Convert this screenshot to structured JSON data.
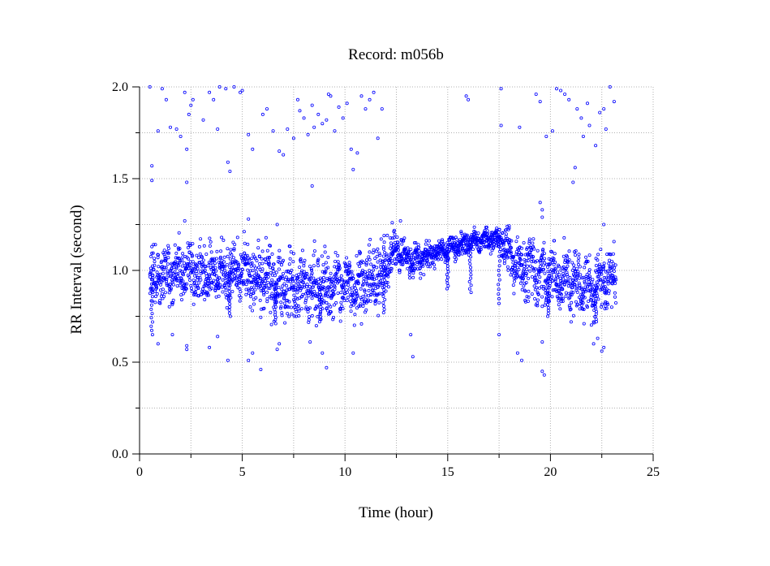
{
  "chart_data": {
    "type": "scatter",
    "title": "Record:  m056b",
    "xlabel": "Time (hour)",
    "ylabel": "RR Interval (second)",
    "xlim": [
      0,
      25
    ],
    "ylim": [
      0.0,
      2.0
    ],
    "x_ticks": [
      {
        "value": 0,
        "label": "0"
      },
      {
        "value": 5,
        "label": "5"
      },
      {
        "value": 10,
        "label": "10"
      },
      {
        "value": 15,
        "label": "15"
      },
      {
        "value": 20,
        "label": "20"
      },
      {
        "value": 25,
        "label": "25"
      }
    ],
    "y_ticks": [
      {
        "value": 0.0,
        "label": "0.0"
      },
      {
        "value": 0.5,
        "label": "0.5"
      },
      {
        "value": 1.0,
        "label": "1.0"
      },
      {
        "value": 1.5,
        "label": "1.5"
      },
      {
        "value": 2.0,
        "label": "2.0"
      }
    ],
    "grid": true,
    "grid_style": "dotted",
    "marker": "open-circle",
    "series_color": "#0000ff",
    "trend": [
      {
        "x": 0.5,
        "y": 0.97,
        "spread": 0.13
      },
      {
        "x": 1.5,
        "y": 0.99,
        "spread": 0.13
      },
      {
        "x": 3.0,
        "y": 1.0,
        "spread": 0.13
      },
      {
        "x": 5.0,
        "y": 0.98,
        "spread": 0.13
      },
      {
        "x": 6.5,
        "y": 0.93,
        "spread": 0.15
      },
      {
        "x": 8.0,
        "y": 0.9,
        "spread": 0.14
      },
      {
        "x": 10.0,
        "y": 0.92,
        "spread": 0.14
      },
      {
        "x": 11.5,
        "y": 0.95,
        "spread": 0.14
      },
      {
        "x": 12.5,
        "y": 1.12,
        "spread": 0.08
      },
      {
        "x": 13.2,
        "y": 1.05,
        "spread": 0.08
      },
      {
        "x": 14.5,
        "y": 1.1,
        "spread": 0.05
      },
      {
        "x": 16.0,
        "y": 1.15,
        "spread": 0.05
      },
      {
        "x": 17.5,
        "y": 1.18,
        "spread": 0.05
      },
      {
        "x": 18.2,
        "y": 1.05,
        "spread": 0.12
      },
      {
        "x": 19.5,
        "y": 0.98,
        "spread": 0.14
      },
      {
        "x": 21.0,
        "y": 0.94,
        "spread": 0.14
      },
      {
        "x": 22.0,
        "y": 0.9,
        "spread": 0.14
      },
      {
        "x": 23.2,
        "y": 0.99,
        "spread": 0.12
      }
    ],
    "dips": [
      {
        "x": 0.6,
        "y": 0.65
      },
      {
        "x": 4.4,
        "y": 0.75
      },
      {
        "x": 6.6,
        "y": 0.73
      },
      {
        "x": 8.8,
        "y": 0.72
      },
      {
        "x": 11.9,
        "y": 0.77
      },
      {
        "x": 15.0,
        "y": 0.9
      },
      {
        "x": 16.1,
        "y": 0.88
      },
      {
        "x": 17.5,
        "y": 0.82
      },
      {
        "x": 19.9,
        "y": 0.75
      },
      {
        "x": 22.2,
        "y": 0.72
      }
    ],
    "outliers": [
      {
        "x": 0.5,
        "y": 2.0
      },
      {
        "x": 0.6,
        "y": 1.57
      },
      {
        "x": 0.6,
        "y": 1.49
      },
      {
        "x": 0.9,
        "y": 1.76
      },
      {
        "x": 1.1,
        "y": 1.99
      },
      {
        "x": 1.3,
        "y": 1.93
      },
      {
        "x": 1.5,
        "y": 1.78
      },
      {
        "x": 1.8,
        "y": 1.77
      },
      {
        "x": 2.0,
        "y": 1.73
      },
      {
        "x": 2.2,
        "y": 1.97
      },
      {
        "x": 2.3,
        "y": 1.66
      },
      {
        "x": 2.4,
        "y": 1.85
      },
      {
        "x": 2.5,
        "y": 1.9
      },
      {
        "x": 2.6,
        "y": 1.93
      },
      {
        "x": 2.3,
        "y": 1.48
      },
      {
        "x": 3.1,
        "y": 1.82
      },
      {
        "x": 3.4,
        "y": 1.97
      },
      {
        "x": 3.6,
        "y": 1.93
      },
      {
        "x": 3.8,
        "y": 1.77
      },
      {
        "x": 3.9,
        "y": 2.0
      },
      {
        "x": 4.2,
        "y": 1.99
      },
      {
        "x": 4.3,
        "y": 1.59
      },
      {
        "x": 4.4,
        "y": 1.54
      },
      {
        "x": 4.6,
        "y": 2.0
      },
      {
        "x": 4.9,
        "y": 1.97
      },
      {
        "x": 5.0,
        "y": 1.98
      },
      {
        "x": 5.3,
        "y": 1.74
      },
      {
        "x": 5.5,
        "y": 1.66
      },
      {
        "x": 6.0,
        "y": 1.85
      },
      {
        "x": 6.2,
        "y": 1.88
      },
      {
        "x": 6.5,
        "y": 1.76
      },
      {
        "x": 6.8,
        "y": 1.65
      },
      {
        "x": 7.0,
        "y": 1.63
      },
      {
        "x": 7.2,
        "y": 1.77
      },
      {
        "x": 7.5,
        "y": 1.72
      },
      {
        "x": 7.7,
        "y": 1.93
      },
      {
        "x": 7.8,
        "y": 1.87
      },
      {
        "x": 8.0,
        "y": 1.83
      },
      {
        "x": 8.2,
        "y": 1.74
      },
      {
        "x": 8.4,
        "y": 1.9
      },
      {
        "x": 8.5,
        "y": 1.78
      },
      {
        "x": 8.7,
        "y": 1.85
      },
      {
        "x": 8.9,
        "y": 1.8
      },
      {
        "x": 9.1,
        "y": 1.82
      },
      {
        "x": 9.3,
        "y": 1.95
      },
      {
        "x": 9.5,
        "y": 1.76
      },
      {
        "x": 9.7,
        "y": 1.89
      },
      {
        "x": 9.9,
        "y": 1.83
      },
      {
        "x": 10.1,
        "y": 1.91
      },
      {
        "x": 10.3,
        "y": 1.66
      },
      {
        "x": 10.4,
        "y": 1.55
      },
      {
        "x": 10.6,
        "y": 1.64
      },
      {
        "x": 10.8,
        "y": 1.95
      },
      {
        "x": 11.0,
        "y": 1.88
      },
      {
        "x": 11.2,
        "y": 1.93
      },
      {
        "x": 11.4,
        "y": 1.97
      },
      {
        "x": 11.6,
        "y": 1.72
      },
      {
        "x": 11.8,
        "y": 1.88
      },
      {
        "x": 8.4,
        "y": 1.46
      },
      {
        "x": 9.2,
        "y": 1.96
      },
      {
        "x": 15.9,
        "y": 1.95
      },
      {
        "x": 16.0,
        "y": 1.93
      },
      {
        "x": 17.6,
        "y": 1.99
      },
      {
        "x": 17.6,
        "y": 1.79
      },
      {
        "x": 18.5,
        "y": 1.78
      },
      {
        "x": 19.3,
        "y": 1.96
      },
      {
        "x": 19.5,
        "y": 1.92
      },
      {
        "x": 19.8,
        "y": 1.73
      },
      {
        "x": 20.1,
        "y": 1.76
      },
      {
        "x": 20.3,
        "y": 1.99
      },
      {
        "x": 20.5,
        "y": 1.98
      },
      {
        "x": 20.7,
        "y": 1.96
      },
      {
        "x": 20.9,
        "y": 1.93
      },
      {
        "x": 21.1,
        "y": 1.48
      },
      {
        "x": 21.2,
        "y": 1.56
      },
      {
        "x": 21.3,
        "y": 1.88
      },
      {
        "x": 21.5,
        "y": 1.83
      },
      {
        "x": 21.6,
        "y": 1.73
      },
      {
        "x": 21.8,
        "y": 1.91
      },
      {
        "x": 21.9,
        "y": 1.79
      },
      {
        "x": 22.2,
        "y": 1.68
      },
      {
        "x": 22.4,
        "y": 1.86
      },
      {
        "x": 22.7,
        "y": 1.77
      },
      {
        "x": 22.9,
        "y": 2.0
      },
      {
        "x": 23.1,
        "y": 1.92
      },
      {
        "x": 22.6,
        "y": 1.88
      },
      {
        "x": 0.9,
        "y": 0.6
      },
      {
        "x": 1.6,
        "y": 0.65
      },
      {
        "x": 2.3,
        "y": 0.59
      },
      {
        "x": 2.3,
        "y": 0.57
      },
      {
        "x": 3.4,
        "y": 0.58
      },
      {
        "x": 3.8,
        "y": 0.64
      },
      {
        "x": 4.3,
        "y": 0.51
      },
      {
        "x": 5.3,
        "y": 0.51
      },
      {
        "x": 5.5,
        "y": 0.55
      },
      {
        "x": 5.9,
        "y": 0.46
      },
      {
        "x": 6.7,
        "y": 0.57
      },
      {
        "x": 6.8,
        "y": 0.6
      },
      {
        "x": 8.3,
        "y": 0.61
      },
      {
        "x": 8.9,
        "y": 0.55
      },
      {
        "x": 9.1,
        "y": 0.47
      },
      {
        "x": 10.4,
        "y": 0.55
      },
      {
        "x": 13.3,
        "y": 0.53
      },
      {
        "x": 13.2,
        "y": 0.65
      },
      {
        "x": 17.5,
        "y": 0.65
      },
      {
        "x": 18.4,
        "y": 0.55
      },
      {
        "x": 18.6,
        "y": 0.51
      },
      {
        "x": 19.6,
        "y": 0.61
      },
      {
        "x": 19.6,
        "y": 0.45
      },
      {
        "x": 19.7,
        "y": 0.43
      },
      {
        "x": 22.1,
        "y": 0.6
      },
      {
        "x": 22.3,
        "y": 0.63
      },
      {
        "x": 22.5,
        "y": 0.56
      },
      {
        "x": 22.6,
        "y": 0.58
      },
      {
        "x": 2.2,
        "y": 1.27
      },
      {
        "x": 5.3,
        "y": 1.28
      },
      {
        "x": 6.7,
        "y": 1.25
      },
      {
        "x": 12.3,
        "y": 1.26
      },
      {
        "x": 12.7,
        "y": 1.27
      },
      {
        "x": 17.9,
        "y": 1.24
      },
      {
        "x": 19.5,
        "y": 1.37
      },
      {
        "x": 19.6,
        "y": 1.33
      },
      {
        "x": 19.6,
        "y": 1.29
      },
      {
        "x": 22.6,
        "y": 1.25
      }
    ]
  }
}
